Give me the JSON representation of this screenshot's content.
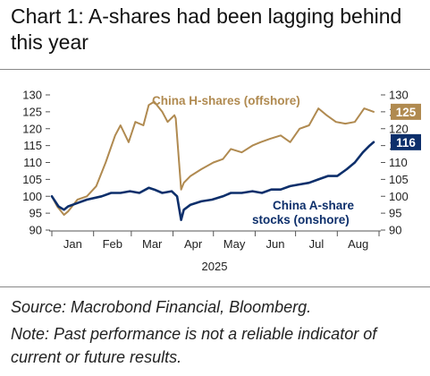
{
  "title": "Chart 1: A-shares had been lagging behind this year",
  "source": "Source: Macrobond Financial, Bloomberg.",
  "note": "Note: Past performance is not a reliable indicator of current or future results.",
  "colors": {
    "h_shares": "#b08a50",
    "a_shares": "#0d2f6b",
    "axis": "#555555"
  },
  "chart_data": {
    "type": "line",
    "title": "",
    "xlabel": "2025",
    "ylabel": "",
    "ylim": [
      90,
      130
    ],
    "yticks": [
      90,
      95,
      100,
      105,
      110,
      115,
      120,
      125,
      130
    ],
    "month_labels": [
      "Jan",
      "Feb",
      "Mar",
      "Apr",
      "May",
      "Jun",
      "Jul",
      "Aug"
    ],
    "year_label": "2025",
    "grid": false,
    "series": [
      {
        "name": "China H-shares (offshore)",
        "color": "#b08a50",
        "end_label": "125",
        "x": [
          "2025-01-01",
          "2025-01-05",
          "2025-01-10",
          "2025-01-13",
          "2025-01-16",
          "2025-01-20",
          "2025-01-27",
          "2025-02-03",
          "2025-02-10",
          "2025-02-17",
          "2025-02-21",
          "2025-02-27",
          "2025-03-04",
          "2025-03-10",
          "2025-03-14",
          "2025-03-18",
          "2025-03-24",
          "2025-03-28",
          "2025-04-02",
          "2025-04-03",
          "2025-04-07",
          "2025-04-09",
          "2025-04-14",
          "2025-04-22",
          "2025-05-01",
          "2025-05-08",
          "2025-05-14",
          "2025-05-22",
          "2025-05-30",
          "2025-06-05",
          "2025-06-12",
          "2025-06-20",
          "2025-06-27",
          "2025-07-04",
          "2025-07-11",
          "2025-07-18",
          "2025-07-24",
          "2025-07-31",
          "2025-08-07",
          "2025-08-14",
          "2025-08-21",
          "2025-08-28"
        ],
        "y": [
          100,
          97,
          94.5,
          95.5,
          97,
          99,
          100,
          103,
          110,
          118,
          121,
          116,
          122,
          121,
          127,
          128,
          125,
          122,
          124,
          123,
          102,
          104,
          106,
          108,
          110,
          111,
          114,
          113,
          115,
          116,
          117,
          118,
          116,
          120,
          121,
          126,
          124,
          122,
          121.5,
          122,
          126,
          125
        ]
      },
      {
        "name": "China A-share stocks (onshore)",
        "color": "#0d2f6b",
        "end_label": "116",
        "x": [
          "2025-01-01",
          "2025-01-06",
          "2025-01-10",
          "2025-01-13",
          "2025-01-20",
          "2025-01-27",
          "2025-02-07",
          "2025-02-14",
          "2025-02-21",
          "2025-02-28",
          "2025-03-07",
          "2025-03-14",
          "2025-03-18",
          "2025-03-24",
          "2025-03-31",
          "2025-04-04",
          "2025-04-07",
          "2025-04-09",
          "2025-04-14",
          "2025-04-22",
          "2025-04-30",
          "2025-05-08",
          "2025-05-14",
          "2025-05-22",
          "2025-05-30",
          "2025-06-06",
          "2025-06-13",
          "2025-06-20",
          "2025-06-27",
          "2025-07-04",
          "2025-07-11",
          "2025-07-18",
          "2025-07-25",
          "2025-08-01",
          "2025-08-08",
          "2025-08-14",
          "2025-08-20",
          "2025-08-25",
          "2025-08-28"
        ],
        "y": [
          100,
          97,
          96,
          97,
          98,
          99,
          100,
          101,
          101,
          101.5,
          101,
          102.5,
          102,
          101,
          101.5,
          100,
          93,
          96,
          97.5,
          98.5,
          99,
          100,
          101,
          101,
          101.5,
          101,
          102,
          102,
          103,
          103.5,
          104,
          105,
          106,
          106,
          108,
          110,
          113,
          115,
          116
        ]
      }
    ],
    "annotations": [
      {
        "text": "China H-shares (offshore)",
        "series": 0
      },
      {
        "text": "China A-share",
        "series": 1
      },
      {
        "text": "stocks (onshore)",
        "series": 1
      }
    ]
  }
}
